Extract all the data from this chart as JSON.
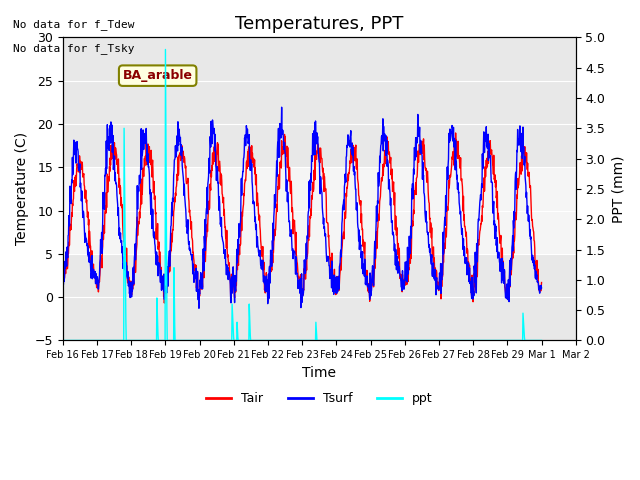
{
  "title": "Temperatures, PPT",
  "xlabel": "Time",
  "ylabel_left": "Temperature (C)",
  "ylabel_right": "PPT (mm)",
  "text_no_data": [
    "No data for f_Tdew",
    "No data for f_Tsky"
  ],
  "label_box": "BA_arable",
  "ylim_left": [
    -5,
    30
  ],
  "ylim_right": [
    0.0,
    5.0
  ],
  "legend_entries": [
    "Tair",
    "Tsurf",
    "ppt"
  ],
  "legend_colors": [
    "red",
    "blue",
    "cyan"
  ],
  "background_color": "#e8e8e8",
  "shaded_band": [
    5,
    15
  ],
  "title_fontsize": 13,
  "axis_fontsize": 10,
  "tick_fontsize": 9,
  "xtick_labels": [
    "Feb 16",
    "Feb 17",
    "Feb 18",
    "Feb 19",
    "Feb 20",
    "Feb 21",
    "Feb 22",
    "Feb 23",
    "Feb 24",
    "Feb 25",
    "Feb 26",
    "Feb 27",
    "Feb 28",
    "Feb 29",
    "Mar 1",
    "Mar 2"
  ],
  "yticks_left": [
    -5,
    0,
    5,
    10,
    15,
    20,
    25,
    30
  ],
  "yticks_right": [
    0.0,
    0.5,
    1.0,
    1.5,
    2.0,
    2.5,
    3.0,
    3.5,
    4.0,
    4.5,
    5.0
  ]
}
